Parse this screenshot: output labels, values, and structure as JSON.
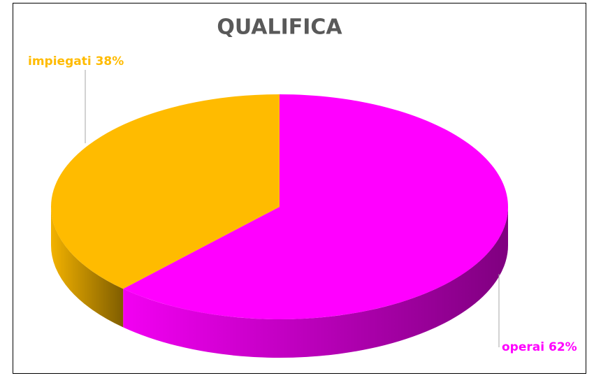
{
  "chart_data": {
    "type": "pie",
    "title": "QUALIFICA",
    "categories": [
      "operai",
      "impiegati"
    ],
    "values": [
      62,
      38
    ],
    "value_labels": [
      "62%",
      "38%"
    ],
    "colors": [
      "#ff00ff",
      "#ffbb00"
    ]
  }
}
